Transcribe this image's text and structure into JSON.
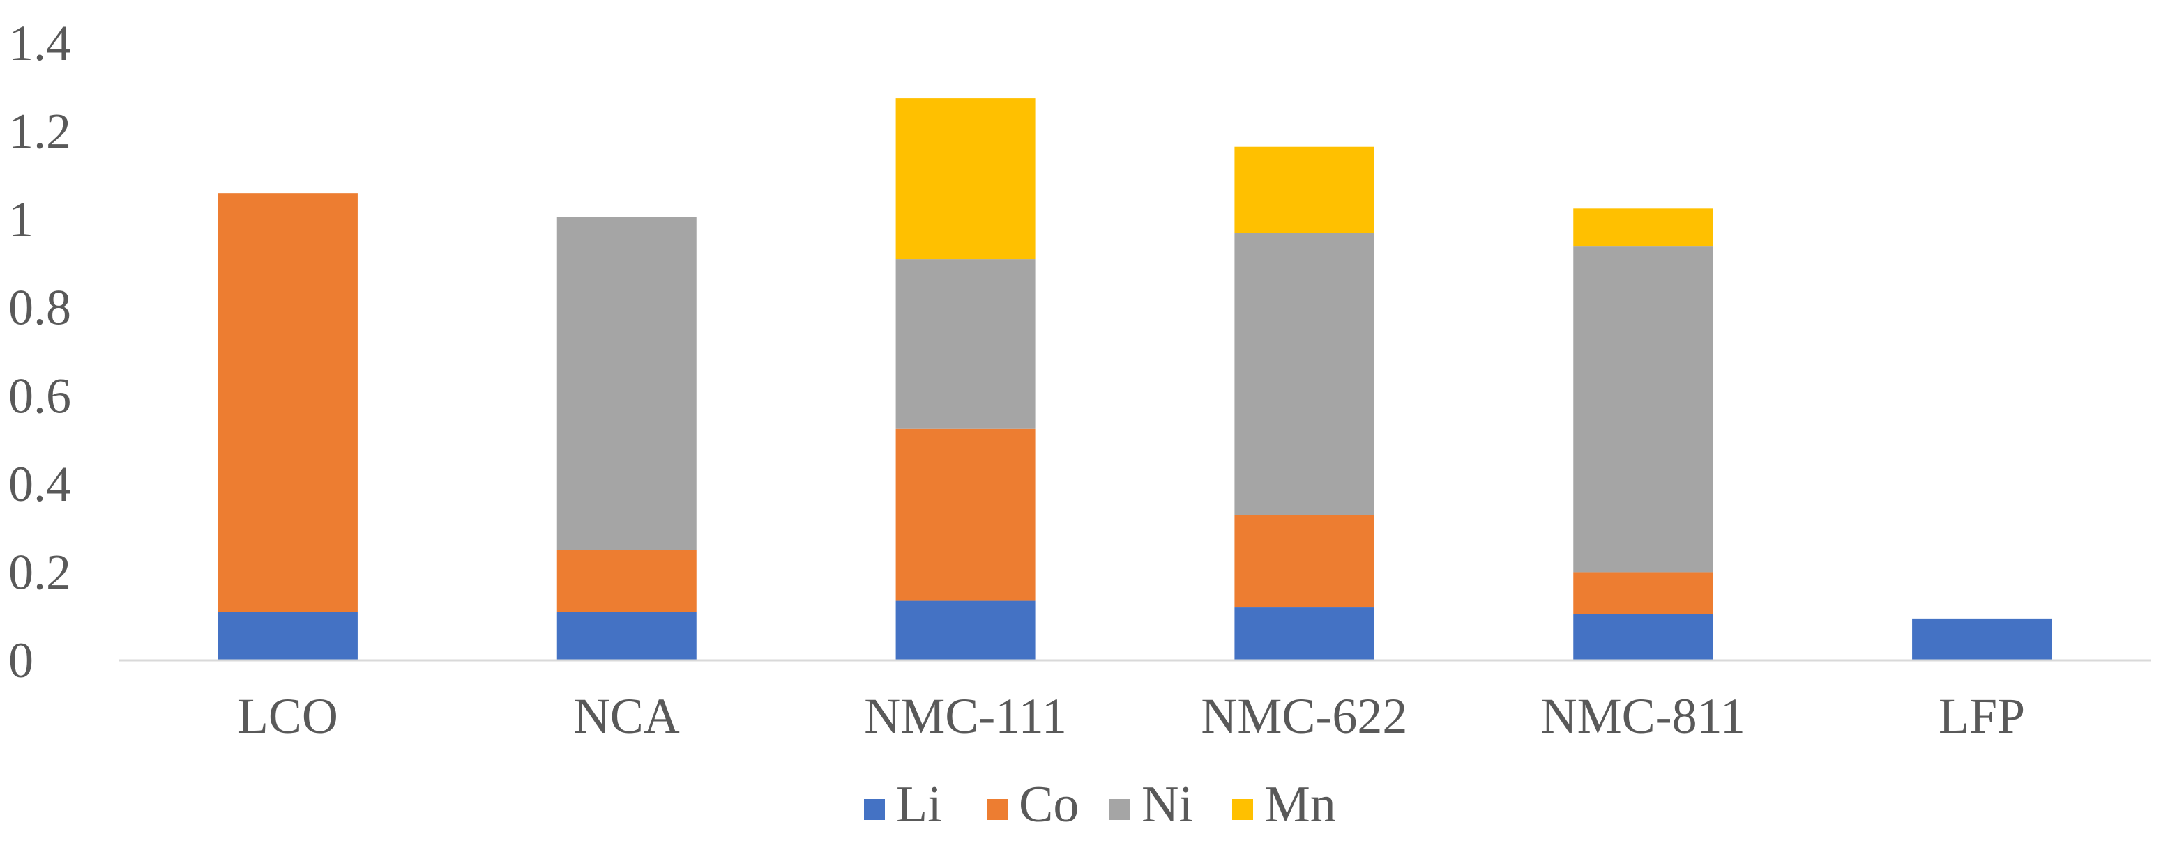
{
  "chart_data": {
    "type": "bar",
    "stacked": true,
    "categories": [
      "LCO",
      "NCA",
      "NMC-111",
      "NMC-622",
      "NMC-811",
      "LFP"
    ],
    "series": [
      {
        "name": "Li",
        "color": "#4472C4",
        "values": [
          0.11,
          0.11,
          0.135,
          0.12,
          0.105,
          0.095
        ]
      },
      {
        "name": "Co",
        "color": "#ED7D31",
        "values": [
          0.95,
          0.14,
          0.39,
          0.21,
          0.095,
          0
        ]
      },
      {
        "name": "Ni",
        "color": "#A5A5A5",
        "values": [
          0,
          0.755,
          0.385,
          0.64,
          0.74,
          0
        ]
      },
      {
        "name": "Mn",
        "color": "#FFC000",
        "values": [
          0,
          0,
          0.365,
          0.195,
          0.085,
          0
        ]
      }
    ],
    "y_ticks": [
      "0",
      "0.2",
      "0.4",
      "0.6",
      "0.8",
      "1",
      "1.2",
      "1.4"
    ],
    "ylim": [
      0,
      1.4
    ],
    "grid": false,
    "legend_position": "bottom"
  }
}
